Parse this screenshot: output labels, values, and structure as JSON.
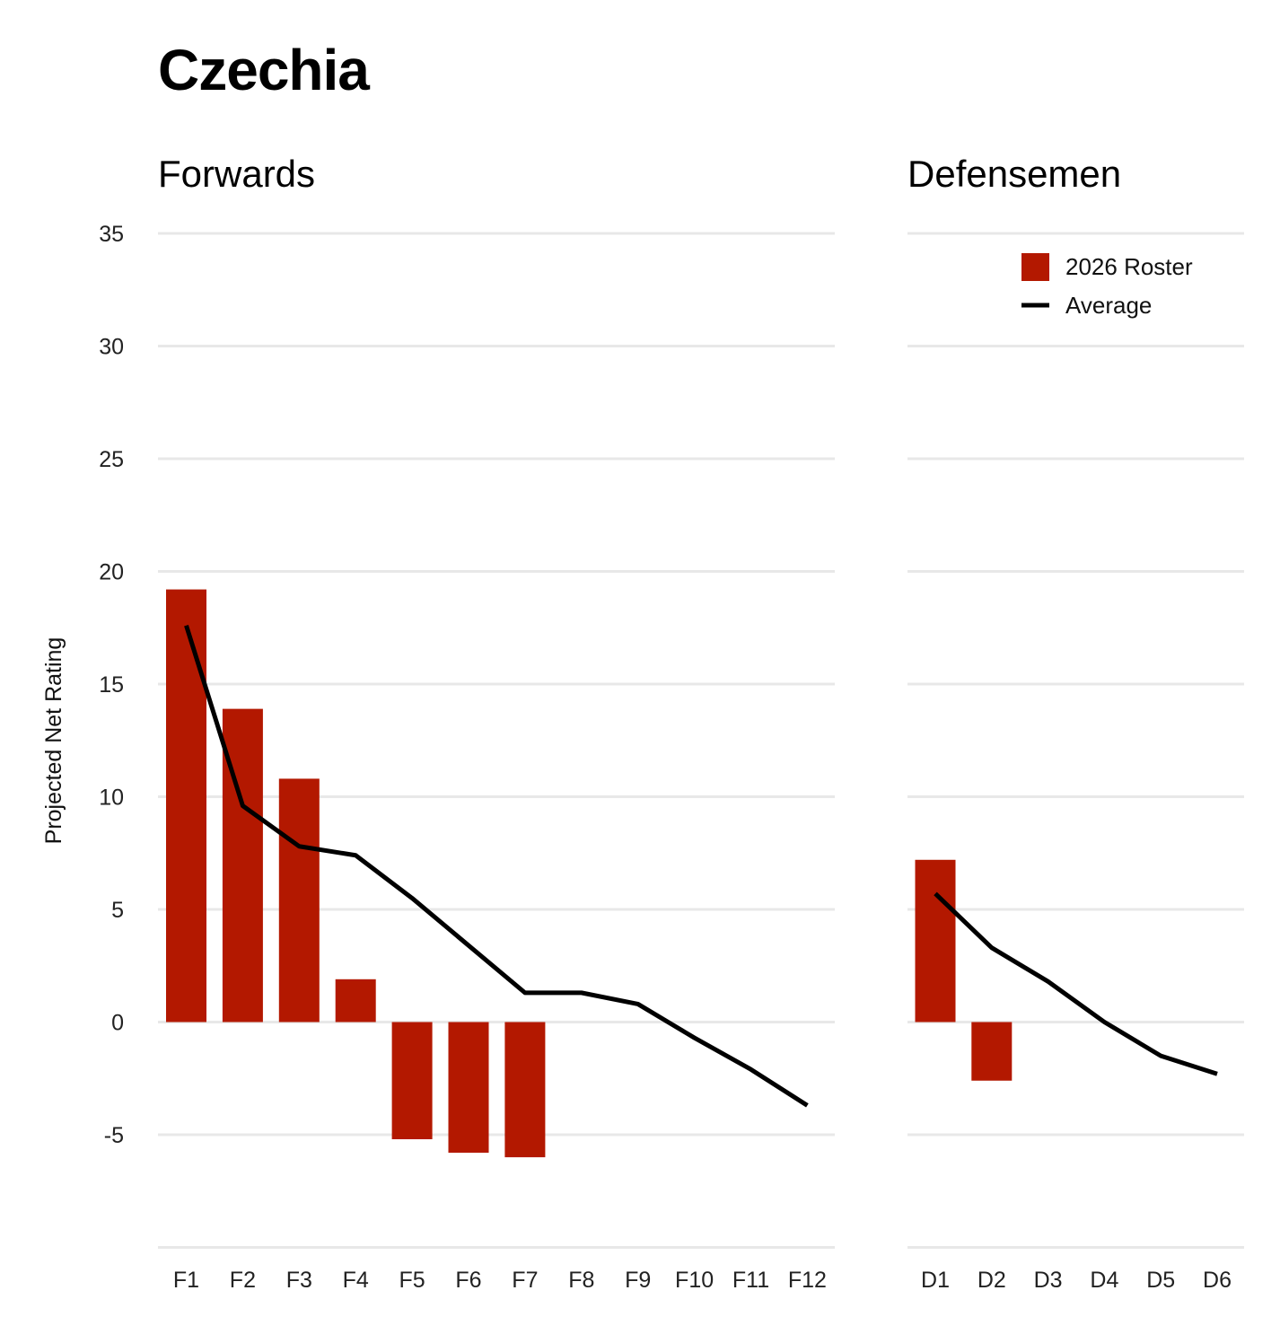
{
  "chart_data": {
    "type": "bar",
    "title": "Czechia",
    "ylabel": "Projected Net Rating",
    "ylim": [
      -10,
      35
    ],
    "yticks": [
      35,
      30,
      25,
      20,
      15,
      10,
      5,
      0,
      -5
    ],
    "ytick_labels": [
      "35",
      "30",
      "25",
      "20",
      "15",
      "10",
      "5",
      "0",
      "-5"
    ],
    "grid": true,
    "colors": {
      "roster": "#b31800",
      "average": "#000000",
      "grid": "#e8e8e8"
    },
    "legend": {
      "placement": "top-right",
      "entries": [
        {
          "name": "2026 Roster",
          "kind": "bar"
        },
        {
          "name": "Average",
          "kind": "line"
        }
      ]
    },
    "panels": [
      {
        "title": "Forwards",
        "categories": [
          "F1",
          "F2",
          "F3",
          "F4",
          "F5",
          "F6",
          "F7",
          "F8",
          "F9",
          "F10",
          "F11",
          "F12"
        ],
        "series": [
          {
            "name": "2026 Roster",
            "type": "bar",
            "values": [
              19.2,
              13.9,
              10.8,
              1.9,
              -5.2,
              -5.8,
              -6.0,
              null,
              null,
              null,
              null,
              null
            ]
          },
          {
            "name": "Average",
            "type": "line",
            "values": [
              17.6,
              9.6,
              7.8,
              7.4,
              5.5,
              3.4,
              1.3,
              1.3,
              0.8,
              -0.7,
              -2.1,
              -3.7
            ]
          }
        ]
      },
      {
        "title": "Defensemen",
        "categories": [
          "D1",
          "D2",
          "D3",
          "D4",
          "D5",
          "D6"
        ],
        "series": [
          {
            "name": "2026 Roster",
            "type": "bar",
            "values": [
              7.2,
              -2.6,
              null,
              null,
              null,
              null
            ]
          },
          {
            "name": "Average",
            "type": "line",
            "values": [
              5.7,
              3.3,
              1.8,
              0.0,
              -1.5,
              -2.3
            ]
          }
        ]
      }
    ]
  }
}
